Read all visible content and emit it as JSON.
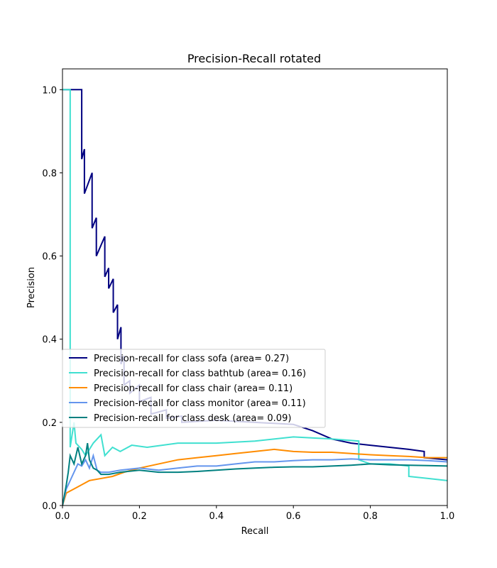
{
  "chart_data": {
    "type": "line",
    "title": "Precision-Recall rotated",
    "xlabel": "Recall",
    "ylabel": "Precision",
    "xlim": [
      0,
      1
    ],
    "ylim": [
      0,
      1.05
    ],
    "xticks": [
      "0.0",
      "0.2",
      "0.4",
      "0.6",
      "0.8",
      "1.0"
    ],
    "yticks": [
      "0.0",
      "0.2",
      "0.4",
      "0.6",
      "0.8",
      "1.0"
    ],
    "grid": false,
    "legend_position": "lower-left",
    "series": [
      {
        "name": "Precision-recall for class sofa (area= 0.27)",
        "color": "#000080",
        "points": [
          [
            0.0,
            1.0
          ],
          [
            0.05,
            1.0
          ],
          [
            0.05,
            0.833
          ],
          [
            0.057,
            0.857
          ],
          [
            0.057,
            0.75
          ],
          [
            0.077,
            0.8
          ],
          [
            0.077,
            0.667
          ],
          [
            0.088,
            0.692
          ],
          [
            0.088,
            0.6
          ],
          [
            0.11,
            0.647
          ],
          [
            0.11,
            0.55
          ],
          [
            0.12,
            0.571
          ],
          [
            0.12,
            0.522
          ],
          [
            0.132,
            0.545
          ],
          [
            0.132,
            0.464
          ],
          [
            0.143,
            0.483
          ],
          [
            0.143,
            0.4
          ],
          [
            0.152,
            0.429
          ],
          [
            0.152,
            0.34
          ],
          [
            0.16,
            0.36
          ],
          [
            0.16,
            0.29
          ],
          [
            0.175,
            0.3
          ],
          [
            0.175,
            0.27
          ],
          [
            0.2,
            0.29
          ],
          [
            0.2,
            0.25
          ],
          [
            0.23,
            0.26
          ],
          [
            0.23,
            0.22
          ],
          [
            0.27,
            0.23
          ],
          [
            0.27,
            0.21
          ],
          [
            0.31,
            0.215
          ],
          [
            0.31,
            0.2
          ],
          [
            0.4,
            0.205
          ],
          [
            0.5,
            0.2
          ],
          [
            0.6,
            0.195
          ],
          [
            0.65,
            0.18
          ],
          [
            0.7,
            0.16
          ],
          [
            0.75,
            0.15
          ],
          [
            0.8,
            0.145
          ],
          [
            0.85,
            0.14
          ],
          [
            0.9,
            0.135
          ],
          [
            0.94,
            0.13
          ],
          [
            0.94,
            0.115
          ],
          [
            1.0,
            0.11
          ]
        ]
      },
      {
        "name": "Precision-recall for class bathtub (area= 0.16)",
        "color": "#40E0D0",
        "points": [
          [
            0.0,
            1.0
          ],
          [
            0.02,
            1.0
          ],
          [
            0.02,
            0.14
          ],
          [
            0.03,
            0.2
          ],
          [
            0.035,
            0.15
          ],
          [
            0.05,
            0.135
          ],
          [
            0.06,
            0.12
          ],
          [
            0.08,
            0.15
          ],
          [
            0.1,
            0.17
          ],
          [
            0.11,
            0.12
          ],
          [
            0.13,
            0.14
          ],
          [
            0.15,
            0.13
          ],
          [
            0.18,
            0.145
          ],
          [
            0.22,
            0.14
          ],
          [
            0.3,
            0.15
          ],
          [
            0.4,
            0.15
          ],
          [
            0.5,
            0.155
          ],
          [
            0.6,
            0.165
          ],
          [
            0.7,
            0.16
          ],
          [
            0.77,
            0.155
          ],
          [
            0.77,
            0.11
          ],
          [
            0.8,
            0.1
          ],
          [
            0.85,
            0.1
          ],
          [
            0.9,
            0.095
          ],
          [
            0.9,
            0.07
          ],
          [
            0.95,
            0.065
          ],
          [
            1.0,
            0.06
          ]
        ]
      },
      {
        "name": "Precision-recall for class chair (area= 0.11)",
        "color": "#FF8C00",
        "points": [
          [
            0.0,
            0.0
          ],
          [
            0.01,
            0.03
          ],
          [
            0.03,
            0.04
          ],
          [
            0.05,
            0.05
          ],
          [
            0.07,
            0.06
          ],
          [
            0.1,
            0.065
          ],
          [
            0.13,
            0.07
          ],
          [
            0.16,
            0.08
          ],
          [
            0.2,
            0.09
          ],
          [
            0.25,
            0.1
          ],
          [
            0.3,
            0.11
          ],
          [
            0.35,
            0.115
          ],
          [
            0.4,
            0.12
          ],
          [
            0.45,
            0.125
          ],
          [
            0.5,
            0.13
          ],
          [
            0.55,
            0.135
          ],
          [
            0.6,
            0.13
          ],
          [
            0.65,
            0.128
          ],
          [
            0.7,
            0.128
          ],
          [
            0.75,
            0.125
          ],
          [
            0.8,
            0.122
          ],
          [
            0.85,
            0.12
          ],
          [
            0.9,
            0.118
          ],
          [
            0.95,
            0.115
          ],
          [
            1.0,
            0.115
          ]
        ]
      },
      {
        "name": "Precision-recall for class monitor (area= 0.11)",
        "color": "#6495ED",
        "points": [
          [
            0.0,
            0.0
          ],
          [
            0.01,
            0.04
          ],
          [
            0.02,
            0.06
          ],
          [
            0.03,
            0.08
          ],
          [
            0.04,
            0.1
          ],
          [
            0.05,
            0.095
          ],
          [
            0.06,
            0.11
          ],
          [
            0.07,
            0.09
          ],
          [
            0.08,
            0.12
          ],
          [
            0.09,
            0.085
          ],
          [
            0.1,
            0.08
          ],
          [
            0.12,
            0.08
          ],
          [
            0.15,
            0.085
          ],
          [
            0.2,
            0.09
          ],
          [
            0.25,
            0.085
          ],
          [
            0.3,
            0.09
          ],
          [
            0.35,
            0.095
          ],
          [
            0.4,
            0.095
          ],
          [
            0.45,
            0.1
          ],
          [
            0.5,
            0.105
          ],
          [
            0.55,
            0.105
          ],
          [
            0.6,
            0.108
          ],
          [
            0.65,
            0.11
          ],
          [
            0.7,
            0.11
          ],
          [
            0.75,
            0.112
          ],
          [
            0.8,
            0.11
          ],
          [
            0.85,
            0.11
          ],
          [
            0.9,
            0.11
          ],
          [
            0.95,
            0.108
          ],
          [
            1.0,
            0.105
          ]
        ]
      },
      {
        "name": "Precision-recall for class desk (area= 0.09)",
        "color": "#008080",
        "points": [
          [
            0.0,
            0.0
          ],
          [
            0.01,
            0.05
          ],
          [
            0.015,
            0.08
          ],
          [
            0.02,
            0.12
          ],
          [
            0.03,
            0.1
          ],
          [
            0.04,
            0.14
          ],
          [
            0.05,
            0.1
          ],
          [
            0.06,
            0.12
          ],
          [
            0.065,
            0.15
          ],
          [
            0.07,
            0.11
          ],
          [
            0.08,
            0.09
          ],
          [
            0.09,
            0.085
          ],
          [
            0.1,
            0.075
          ],
          [
            0.12,
            0.075
          ],
          [
            0.15,
            0.08
          ],
          [
            0.2,
            0.085
          ],
          [
            0.25,
            0.08
          ],
          [
            0.3,
            0.08
          ],
          [
            0.35,
            0.082
          ],
          [
            0.4,
            0.085
          ],
          [
            0.45,
            0.088
          ],
          [
            0.5,
            0.09
          ],
          [
            0.55,
            0.092
          ],
          [
            0.6,
            0.093
          ],
          [
            0.65,
            0.093
          ],
          [
            0.7,
            0.095
          ],
          [
            0.75,
            0.097
          ],
          [
            0.8,
            0.1
          ],
          [
            0.85,
            0.098
          ],
          [
            0.9,
            0.097
          ],
          [
            0.95,
            0.096
          ],
          [
            1.0,
            0.095
          ]
        ]
      }
    ]
  }
}
